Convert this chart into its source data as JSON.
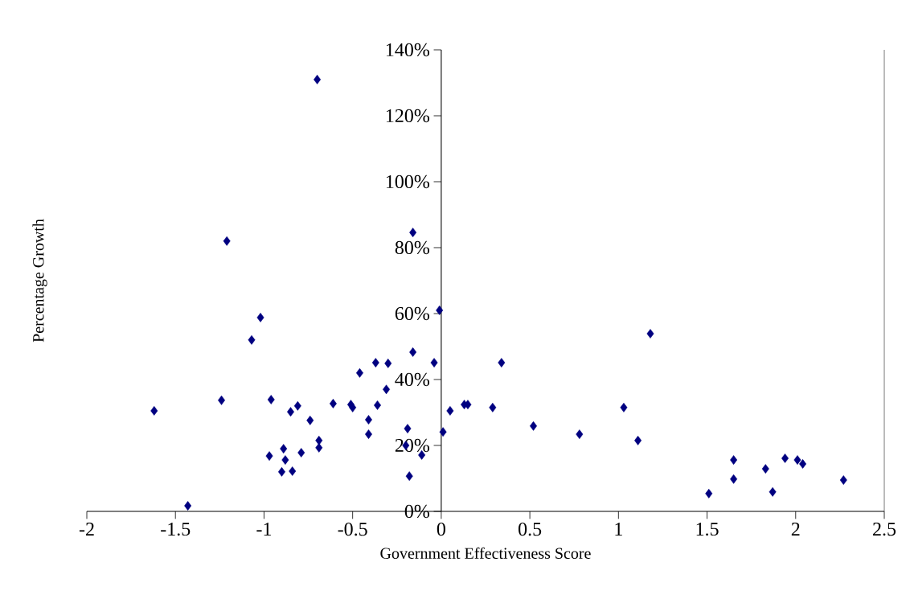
{
  "chart_data": {
    "type": "scatter",
    "xlabel": "Government Effectiveness Score",
    "ylabel": "Percentage Growth",
    "xlim": [
      -2,
      2.5
    ],
    "xticks": [
      -2,
      -1.5,
      -1,
      -0.5,
      0,
      0.5,
      1,
      1.5,
      2,
      2.5
    ],
    "ylim": [
      0,
      140
    ],
    "yticks": [
      {
        "value": 0,
        "label": "0%"
      },
      {
        "value": 20,
        "label": "20%"
      },
      {
        "value": 40,
        "label": "40%"
      },
      {
        "value": 60,
        "label": "60%"
      },
      {
        "value": 80,
        "label": "80%"
      },
      {
        "value": 100,
        "label": "100%"
      },
      {
        "value": 120,
        "label": "120%"
      },
      {
        "value": 140,
        "label": "140%"
      }
    ],
    "grid": false,
    "marker": "diamond",
    "series": [
      {
        "color": "#000080",
        "x": [
          -1.62,
          -1.43,
          -1.24,
          -1.21,
          -1.02,
          -1.07,
          -0.97,
          -0.96,
          -0.89,
          -0.88,
          -0.9,
          -0.84,
          -0.85,
          -0.81,
          -0.79,
          -0.74,
          -0.69,
          -0.69,
          -0.7,
          -0.61,
          -0.51,
          -0.5,
          -0.46,
          -0.36,
          -0.37,
          -0.41,
          -0.41,
          -0.3,
          -0.31,
          -0.19,
          -0.2,
          -0.18,
          -0.16,
          -0.16,
          -0.11,
          -0.04,
          -0.01,
          0.01,
          0.05,
          0.13,
          0.15,
          0.29,
          0.34,
          0.52,
          0.78,
          1.03,
          1.11,
          1.18,
          1.51,
          1.65,
          1.65,
          1.83,
          1.87,
          1.94,
          2.01,
          2.04,
          2.27
        ],
        "values": [
          30.5,
          1.7,
          33.7,
          82,
          58.8,
          52,
          16.8,
          33.9,
          19,
          15.6,
          12,
          12.2,
          30.2,
          32,
          17.8,
          27.6,
          21.5,
          19.3,
          131,
          32.7,
          32.4,
          31.5,
          42,
          32.2,
          45.1,
          27.8,
          23.4,
          44.9,
          37,
          25.1,
          20,
          10.7,
          84.6,
          48.3,
          17.1,
          45.1,
          61,
          24.1,
          30.5,
          32.4,
          32.4,
          31.5,
          45.1,
          25.9,
          23.4,
          31.5,
          21.5,
          53.9,
          5.4,
          15.6,
          9.8,
          12.9,
          5.9,
          16.1,
          15.6,
          14.4,
          9.5
        ]
      }
    ]
  }
}
